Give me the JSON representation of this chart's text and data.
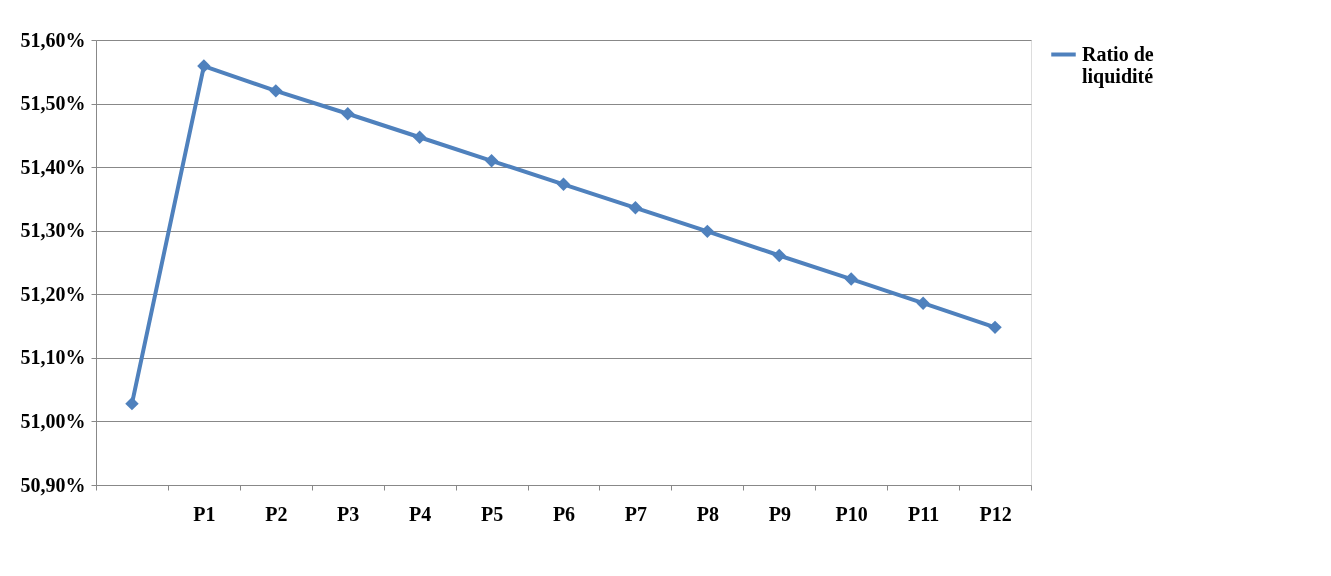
{
  "chart_data": {
    "type": "line",
    "categories": [
      null,
      "P1",
      "P2",
      "P3",
      "P4",
      "P5",
      "P6",
      "P7",
      "P8",
      "P9",
      "P10",
      "P11",
      "P12"
    ],
    "series": [
      {
        "name": "Ratio de liquidité",
        "color": "#4f81bd",
        "values": [
          51.028,
          51.559,
          51.52,
          51.484,
          51.447,
          51.41,
          51.373,
          51.336,
          51.299,
          51.261,
          51.224,
          51.186,
          51.148
        ]
      }
    ],
    "ylim": [
      50.9,
      51.6
    ],
    "yticks": [
      {
        "value": 50.9,
        "label": "50,90%"
      },
      {
        "value": 51.0,
        "label": "51,00%"
      },
      {
        "value": 51.1,
        "label": "51,10%"
      },
      {
        "value": 51.2,
        "label": "51,20%"
      },
      {
        "value": 51.3,
        "label": "51,30%"
      },
      {
        "value": 51.4,
        "label": "51,40%"
      },
      {
        "value": 51.5,
        "label": "51,50%"
      },
      {
        "value": 51.6,
        "label": "51,60%"
      }
    ],
    "grid": "y",
    "legend": "right",
    "marker": "diamond",
    "line_style": "solid"
  }
}
